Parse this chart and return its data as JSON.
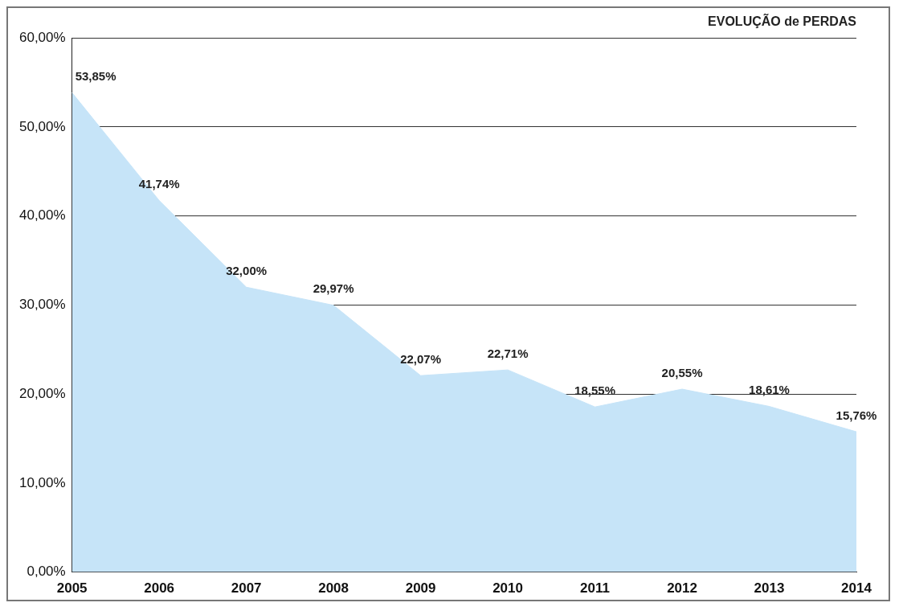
{
  "chart_data": {
    "type": "area",
    "title": "EVOLUÇÃO de PERDAS",
    "categories": [
      "2005",
      "2006",
      "2007",
      "2008",
      "2009",
      "2010",
      "2011",
      "2012",
      "2013",
      "2014"
    ],
    "series": [
      {
        "color": "#c6e4f8",
        "values": [
          53.85,
          41.74,
          32.0,
          29.97,
          22.07,
          22.71,
          18.55,
          20.55,
          18.61,
          15.76
        ],
        "value_labels": [
          "53,85%",
          "41,74%",
          "32,00%",
          "29,97%",
          "22,07%",
          "22,71%",
          "18,55%",
          "20,55%",
          "18,61%",
          "15,76%"
        ]
      }
    ],
    "ylim": [
      0,
      60
    ],
    "yticks": [
      {
        "value": 0,
        "label": "0,00%"
      },
      {
        "value": 10,
        "label": "10,00%"
      },
      {
        "value": 20,
        "label": "20,00%"
      },
      {
        "value": 30,
        "label": "30,00%"
      },
      {
        "value": 40,
        "label": "40,00%"
      },
      {
        "value": 50,
        "label": "50,00%"
      },
      {
        "value": 60,
        "label": "60,00%"
      }
    ],
    "grid": "y",
    "marker": "none"
  }
}
